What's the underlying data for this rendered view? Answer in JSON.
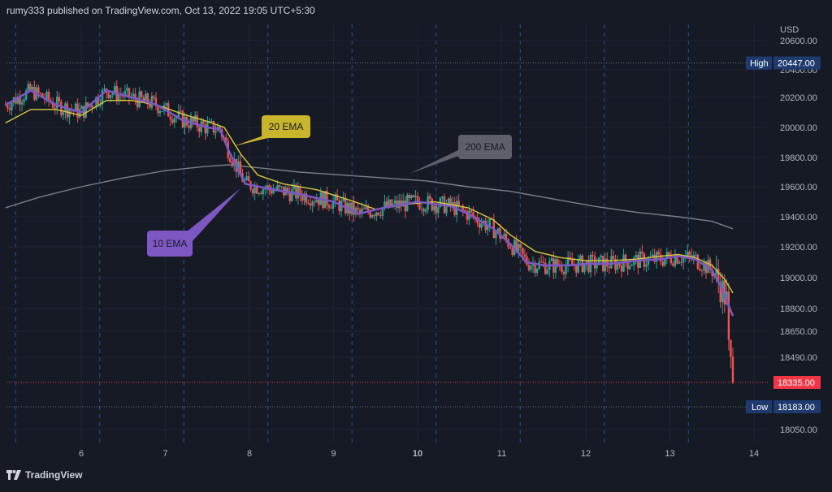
{
  "header": {
    "text": "rumy333 published on TradingView.com, Oct 13, 2022 19:05 UTC+5:30"
  },
  "footer": {
    "brand": "TradingView"
  },
  "chart_data": {
    "type": "candlestick",
    "currency": "USD",
    "x_ticks": [
      "6",
      "7",
      "8",
      "9",
      "10",
      "11",
      "12",
      "13",
      "14"
    ],
    "x_ticks_bold": [
      "10"
    ],
    "y_ticks": [
      20600,
      20400,
      20200,
      20000,
      19800,
      19600,
      19400,
      19200,
      19000,
      18800,
      18650,
      18490,
      18050
    ],
    "y_tick_labels": [
      "20600.00",
      "20400.00",
      "20200.00",
      "20000.00",
      "19800.00",
      "19600.00",
      "19400.00",
      "19200.00",
      "19000.00",
      "18800.00",
      "18650.00",
      "18490.00",
      "18050.00"
    ],
    "x_range_days": [
      5.1,
      14.4
    ],
    "high": {
      "label": "High",
      "value": "20447.00",
      "y": 20447
    },
    "low": {
      "label": "Low",
      "value": "18183.00",
      "y": 18183
    },
    "last": {
      "value": "18335.00",
      "y": 18335
    },
    "annotations": [
      {
        "label": "20 EMA",
        "color": "#c9b52c"
      },
      {
        "label": "10 EMA",
        "color": "#7e57c2"
      },
      {
        "label": "200 EMA",
        "color": "#5d606b"
      }
    ],
    "ema10": [
      [
        5.1,
        20150
      ],
      [
        5.4,
        20250
      ],
      [
        5.7,
        20150
      ],
      [
        6.0,
        20100
      ],
      [
        6.3,
        20250
      ],
      [
        6.6,
        20200
      ],
      [
        6.9,
        20150
      ],
      [
        7.2,
        20050
      ],
      [
        7.5,
        20000
      ],
      [
        7.65,
        19990
      ],
      [
        7.75,
        19850
      ],
      [
        7.95,
        19620
      ],
      [
        8.2,
        19590
      ],
      [
        8.6,
        19550
      ],
      [
        9.0,
        19500
      ],
      [
        9.3,
        19420
      ],
      [
        9.6,
        19460
      ],
      [
        10.0,
        19500
      ],
      [
        10.4,
        19470
      ],
      [
        10.6,
        19420
      ],
      [
        10.9,
        19320
      ],
      [
        11.1,
        19220
      ],
      [
        11.3,
        19100
      ],
      [
        11.5,
        19080
      ],
      [
        11.8,
        19080
      ],
      [
        12.0,
        19090
      ],
      [
        12.3,
        19090
      ],
      [
        12.6,
        19110
      ],
      [
        12.9,
        19120
      ],
      [
        13.1,
        19140
      ],
      [
        13.3,
        19120
      ],
      [
        13.5,
        19050
      ],
      [
        13.6,
        18950
      ],
      [
        13.75,
        18750
      ]
    ],
    "ema20": [
      [
        5.1,
        20030
      ],
      [
        5.4,
        20120
      ],
      [
        5.7,
        20120
      ],
      [
        6.0,
        20080
      ],
      [
        6.3,
        20180
      ],
      [
        6.6,
        20180
      ],
      [
        6.9,
        20150
      ],
      [
        7.2,
        20090
      ],
      [
        7.5,
        20040
      ],
      [
        7.7,
        20000
      ],
      [
        7.9,
        19820
      ],
      [
        8.1,
        19680
      ],
      [
        8.4,
        19620
      ],
      [
        8.8,
        19580
      ],
      [
        9.2,
        19510
      ],
      [
        9.5,
        19450
      ],
      [
        9.8,
        19480
      ],
      [
        10.2,
        19500
      ],
      [
        10.6,
        19460
      ],
      [
        10.9,
        19380
      ],
      [
        11.1,
        19280
      ],
      [
        11.4,
        19170
      ],
      [
        11.7,
        19130
      ],
      [
        12.0,
        19110
      ],
      [
        12.3,
        19110
      ],
      [
        12.6,
        19120
      ],
      [
        12.9,
        19140
      ],
      [
        13.1,
        19150
      ],
      [
        13.3,
        19130
      ],
      [
        13.5,
        19080
      ],
      [
        13.65,
        18990
      ],
      [
        13.75,
        18900
      ]
    ],
    "ema200": [
      [
        5.1,
        19460
      ],
      [
        5.5,
        19530
      ],
      [
        6.0,
        19600
      ],
      [
        6.5,
        19660
      ],
      [
        7.0,
        19710
      ],
      [
        7.5,
        19740
      ],
      [
        7.75,
        19750
      ],
      [
        8.1,
        19730
      ],
      [
        8.6,
        19700
      ],
      [
        9.1,
        19680
      ],
      [
        9.6,
        19660
      ],
      [
        10.1,
        19640
      ],
      [
        10.6,
        19600
      ],
      [
        11.1,
        19570
      ],
      [
        11.6,
        19520
      ],
      [
        12.1,
        19470
      ],
      [
        12.6,
        19430
      ],
      [
        13.1,
        19400
      ],
      [
        13.5,
        19370
      ],
      [
        13.75,
        19320
      ]
    ]
  }
}
